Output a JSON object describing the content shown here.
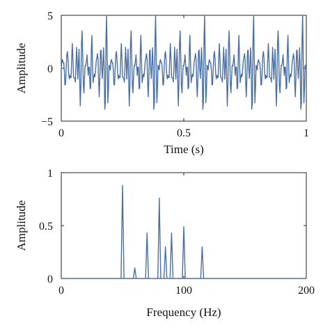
{
  "chart_data": [
    {
      "type": "line",
      "xlabel": "Time (s)",
      "ylabel": "Amplitude",
      "xlim": [
        0,
        1
      ],
      "ylim": [
        -5,
        5
      ],
      "xticks": [
        "0",
        "0.5",
        "1"
      ],
      "yticks": [
        "5",
        "0",
        "−5"
      ],
      "grid": false,
      "color": "#4a6fa5",
      "signal": {
        "sample_count": 400,
        "components": [
          {
            "frequency": 50,
            "amplitude": 0.88
          },
          {
            "frequency": 60,
            "amplitude": 0.1
          },
          {
            "frequency": 70,
            "amplitude": 0.43
          },
          {
            "frequency": 80,
            "amplitude": 0.76
          },
          {
            "frequency": 85,
            "amplitude": 0.3
          },
          {
            "frequency": 90,
            "amplitude": 0.43
          },
          {
            "frequency": 100,
            "amplitude": 0.49
          },
          {
            "frequency": 115,
            "amplitude": 0.3
          }
        ]
      }
    },
    {
      "type": "line",
      "xlabel": "Frequency (Hz)",
      "ylabel": "Amplitude",
      "xlim": [
        0,
        200
      ],
      "ylim": [
        0,
        1
      ],
      "xticks": [
        "0",
        "100",
        "200"
      ],
      "yticks": [
        "1",
        "0.5",
        "0"
      ],
      "grid": false,
      "color": "#4a6fa5",
      "peaks": [
        {
          "x": 50,
          "y": 0.88
        },
        {
          "x": 60,
          "y": 0.1
        },
        {
          "x": 70,
          "y": 0.43
        },
        {
          "x": 80,
          "y": 0.76
        },
        {
          "x": 85,
          "y": 0.3
        },
        {
          "x": 90,
          "y": 0.43
        },
        {
          "x": 100,
          "y": 0.49
        },
        {
          "x": 115,
          "y": 0.3
        }
      ]
    }
  ]
}
